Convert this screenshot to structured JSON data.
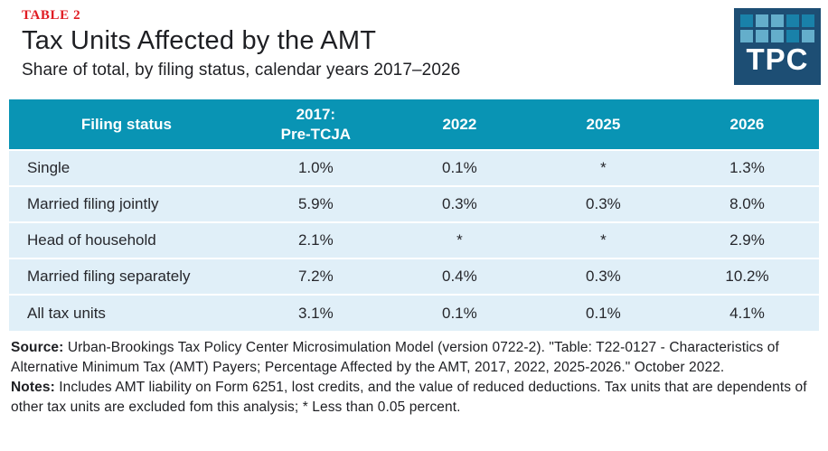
{
  "header": {
    "table_label": "TABLE 2",
    "title": "Tax Units Affected by the AMT",
    "subtitle": "Share of total, by filing status, calendar years 2017–2026"
  },
  "logo": {
    "text": "TPC"
  },
  "colors": {
    "header_teal": "#0994B4",
    "row_light_blue": "#E0EFF8",
    "table_label_red": "#E01B22",
    "logo_navy": "#1D4E74",
    "logo_square_dark": "#1981A9",
    "logo_square_light": "#64AECB"
  },
  "table": {
    "header": {
      "filing_status": "Filing status",
      "col_2017_line1": "2017:",
      "col_2017_line2": "Pre-TCJA"
    }
  },
  "chart_data": {
    "type": "table",
    "title": "Tax Units Affected by the AMT",
    "subtitle": "Share of total, by filing status, calendar years 2017–2026",
    "categories": [
      "Single",
      "Married filing jointly",
      "Head of household",
      "Married filing separately",
      "All tax units"
    ],
    "series": [
      {
        "name": "2017: Pre-TCJA",
        "values": [
          "1.0%",
          "5.9%",
          "2.1%",
          "7.2%",
          "3.1%"
        ]
      },
      {
        "name": "2022",
        "values": [
          "0.1%",
          "0.3%",
          "*",
          "0.4%",
          "0.1%"
        ]
      },
      {
        "name": "2025",
        "values": [
          "*",
          "0.3%",
          "*",
          "0.3%",
          "0.1%"
        ]
      },
      {
        "name": "2026",
        "values": [
          "1.3%",
          "8.0%",
          "2.9%",
          "10.2%",
          "4.1%"
        ]
      }
    ],
    "asterisk_meaning": "* Less than 0.05 percent"
  },
  "footer": {
    "source_label": "Source:",
    "source_text": " Urban-Brookings Tax Policy Center Microsimulation Model (version 0722-2). \"Table: T22-0127 - Characteristics of Alternative Minimum Tax (AMT) Payers; Percentage Affected by the AMT, 2017, 2022, 2025-2026.\" October 2022.",
    "notes_label": "Notes:",
    "notes_text": " Includes AMT liability on Form 6251, lost credits, and the value of reduced deductions. Tax units that are dependents of other tax units are excluded fom this analysis; * Less than 0.05 percent."
  }
}
